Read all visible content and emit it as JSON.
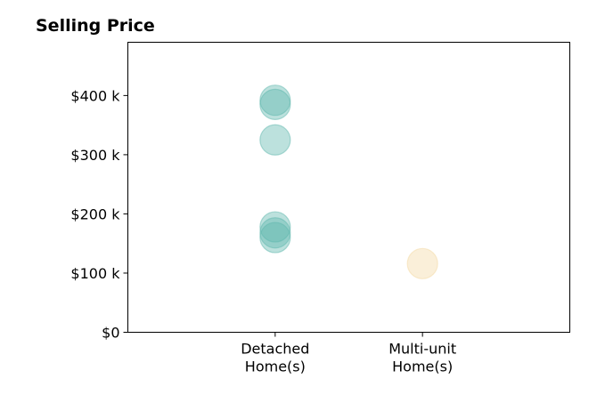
{
  "chart_data": {
    "type": "scatter",
    "title": "Selling Price",
    "xlabel": "",
    "ylabel": "",
    "categories": [
      "Detached\nHome(s)",
      "Multi-unit\nHome(s)"
    ],
    "x_range": [
      -1,
      2
    ],
    "ylim": [
      0,
      490000
    ],
    "yticks": [
      0,
      100000,
      200000,
      300000,
      400000
    ],
    "ytick_labels": [
      "$0",
      "$100 k",
      "$200 k",
      "$300 k",
      "$400 k"
    ],
    "grid": false,
    "series": [
      {
        "color": "#5fb7ad",
        "points": [
          {
            "category": 0,
            "y": 392000
          },
          {
            "category": 0,
            "y": 385000
          },
          {
            "category": 0,
            "y": 325000
          },
          {
            "category": 0,
            "y": 178000
          },
          {
            "category": 0,
            "y": 168000
          },
          {
            "category": 0,
            "y": 160000
          }
        ]
      },
      {
        "color": "#f3d9a4",
        "points": [
          {
            "category": 1,
            "y": 116000
          }
        ]
      }
    ]
  }
}
